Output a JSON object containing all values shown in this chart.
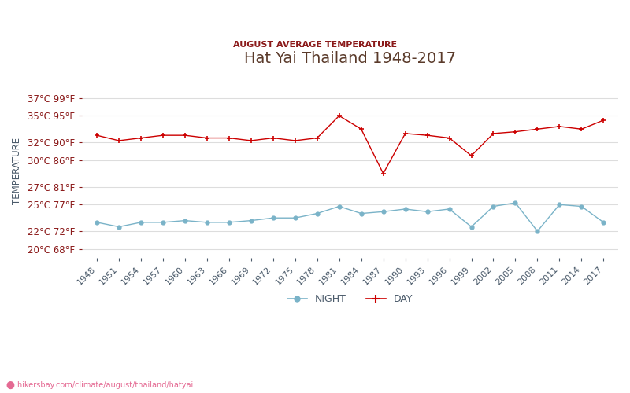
{
  "title": "Hat Yai Thailand 1948-2017",
  "subtitle": "AUGUST AVERAGE TEMPERATURE",
  "ylabel": "TEMPERATURE",
  "watermark": "hikersbay.com/climate/august/thailand/hatyai",
  "title_color": "#5a3a2a",
  "subtitle_color": "#8B1A1A",
  "axis_label_color": "#4a5a6a",
  "tick_label_color": "#8B1A1A",
  "ytick_labels_c": [
    "20°C 68°F",
    "22°C 72°F",
    "25°C 77°F",
    "27°C 81°F",
    "30°C 86°F",
    "32°C 90°F",
    "35°C 95°F",
    "37°C 99°F"
  ],
  "ytick_vals_c": [
    20,
    22,
    25,
    27,
    30,
    32,
    35,
    37
  ],
  "years": [
    1948,
    1951,
    1954,
    1957,
    1960,
    1963,
    1966,
    1969,
    1972,
    1975,
    1978,
    1981,
    1984,
    1987,
    1990,
    1993,
    1996,
    1999,
    2002,
    2005,
    2008,
    2011,
    2014,
    2017
  ],
  "day_temps": [
    32.8,
    32.2,
    32.5,
    32.8,
    32.8,
    32.5,
    32.5,
    32.2,
    32.5,
    32.2,
    32.5,
    35.0,
    33.5,
    28.5,
    33.0,
    32.8,
    32.5,
    30.5,
    33.0,
    33.2,
    33.5,
    33.8,
    33.5,
    34.5
  ],
  "night_temps": [
    23.0,
    22.5,
    23.0,
    23.0,
    23.2,
    23.0,
    23.0,
    23.2,
    23.5,
    23.5,
    24.0,
    24.8,
    24.0,
    24.2,
    24.5,
    24.2,
    24.5,
    22.5,
    24.8,
    25.2,
    22.0,
    25.0,
    24.8,
    23.0
  ],
  "day_color": "#cc0000",
  "night_color": "#7ab3c8",
  "bg_color": "#ffffff",
  "grid_color": "#dddddd",
  "xmin": 1946,
  "xmax": 2019,
  "ymin": 19,
  "ymax": 38.5
}
